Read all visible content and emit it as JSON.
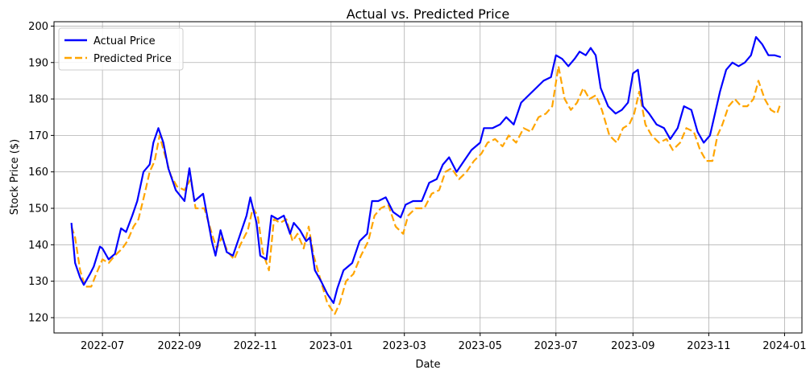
{
  "chart_data": {
    "type": "line",
    "title": "Actual vs. Predicted Price",
    "xlabel": "Date",
    "ylabel": "Stock Price ($)",
    "xlim": [
      "2022-05-23",
      "2024-01-15"
    ],
    "ylim": [
      115.8,
      201.2
    ],
    "grid": true,
    "legend_position": "top-left",
    "x_ticks": [
      "2022-07-01",
      "2022-09-01",
      "2022-11-01",
      "2023-01-01",
      "2023-03-01",
      "2023-05-01",
      "2023-07-01",
      "2023-09-01",
      "2023-11-01",
      "2024-01-01"
    ],
    "x_tick_labels": [
      "2022-07",
      "2022-09",
      "2022-11",
      "2023-01",
      "2023-03",
      "2023-05",
      "2023-07",
      "2023-09",
      "2023-11",
      "2024-01"
    ],
    "y_ticks": [
      120,
      130,
      140,
      150,
      160,
      170,
      180,
      190,
      200
    ],
    "series": [
      {
        "name": "Actual Price",
        "color": "#0000ff",
        "style": "solid",
        "points": [
          [
            "2022-06-06",
            146
          ],
          [
            "2022-06-09",
            135
          ],
          [
            "2022-06-13",
            131
          ],
          [
            "2022-06-16",
            129
          ],
          [
            "2022-06-21",
            132
          ],
          [
            "2022-06-24",
            134
          ],
          [
            "2022-06-29",
            139.5
          ],
          [
            "2022-07-01",
            139
          ],
          [
            "2022-07-06",
            136
          ],
          [
            "2022-07-11",
            137.5
          ],
          [
            "2022-07-16",
            144.5
          ],
          [
            "2022-07-20",
            143.5
          ],
          [
            "2022-07-25",
            148
          ],
          [
            "2022-07-29",
            152
          ],
          [
            "2022-08-03",
            160
          ],
          [
            "2022-08-08",
            162
          ],
          [
            "2022-08-11",
            168
          ],
          [
            "2022-08-15",
            172
          ],
          [
            "2022-08-19",
            168
          ],
          [
            "2022-08-23",
            161
          ],
          [
            "2022-08-29",
            155
          ],
          [
            "2022-09-05",
            152
          ],
          [
            "2022-09-09",
            161
          ],
          [
            "2022-09-13",
            152
          ],
          [
            "2022-09-20",
            154
          ],
          [
            "2022-09-27",
            141
          ],
          [
            "2022-09-30",
            137
          ],
          [
            "2022-10-04",
            144
          ],
          [
            "2022-10-09",
            138
          ],
          [
            "2022-10-14",
            137
          ],
          [
            "2022-10-19",
            142
          ],
          [
            "2022-10-25",
            148
          ],
          [
            "2022-10-28",
            153
          ],
          [
            "2022-11-02",
            146
          ],
          [
            "2022-11-05",
            137
          ],
          [
            "2022-11-10",
            136
          ],
          [
            "2022-11-14",
            148
          ],
          [
            "2022-11-19",
            147
          ],
          [
            "2022-11-24",
            148
          ],
          [
            "2022-11-29",
            143
          ],
          [
            "2022-12-02",
            146
          ],
          [
            "2022-12-07",
            144
          ],
          [
            "2022-12-12",
            141
          ],
          [
            "2022-12-15",
            142
          ],
          [
            "2022-12-19",
            133
          ],
          [
            "2022-12-24",
            130
          ],
          [
            "2022-12-29",
            126.5
          ],
          [
            "2023-01-03",
            124
          ],
          [
            "2023-01-06",
            128
          ],
          [
            "2023-01-11",
            133
          ],
          [
            "2023-01-18",
            135
          ],
          [
            "2023-01-24",
            141
          ],
          [
            "2023-01-30",
            143
          ],
          [
            "2023-02-03",
            152
          ],
          [
            "2023-02-08",
            152
          ],
          [
            "2023-02-14",
            153
          ],
          [
            "2023-02-20",
            149
          ],
          [
            "2023-02-26",
            147.5
          ],
          [
            "2023-03-02",
            151
          ],
          [
            "2023-03-08",
            152
          ],
          [
            "2023-03-15",
            152
          ],
          [
            "2023-03-21",
            157
          ],
          [
            "2023-03-27",
            158
          ],
          [
            "2023-04-01",
            162
          ],
          [
            "2023-04-06",
            164
          ],
          [
            "2023-04-12",
            160
          ],
          [
            "2023-04-18",
            163
          ],
          [
            "2023-04-24",
            166
          ],
          [
            "2023-05-01",
            168
          ],
          [
            "2023-05-04",
            172
          ],
          [
            "2023-05-11",
            172
          ],
          [
            "2023-05-17",
            173
          ],
          [
            "2023-05-22",
            175
          ],
          [
            "2023-05-28",
            173
          ],
          [
            "2023-06-03",
            179
          ],
          [
            "2023-06-09",
            181
          ],
          [
            "2023-06-15",
            183
          ],
          [
            "2023-06-21",
            185
          ],
          [
            "2023-06-27",
            186
          ],
          [
            "2023-07-01",
            192
          ],
          [
            "2023-07-06",
            191
          ],
          [
            "2023-07-11",
            189
          ],
          [
            "2023-07-16",
            191
          ],
          [
            "2023-07-20",
            193
          ],
          [
            "2023-07-25",
            192
          ],
          [
            "2023-07-29",
            194
          ],
          [
            "2023-08-02",
            192
          ],
          [
            "2023-08-06",
            183
          ],
          [
            "2023-08-12",
            178
          ],
          [
            "2023-08-18",
            176
          ],
          [
            "2023-08-23",
            177
          ],
          [
            "2023-08-28",
            179
          ],
          [
            "2023-09-01",
            187
          ],
          [
            "2023-09-05",
            188
          ],
          [
            "2023-09-09",
            178
          ],
          [
            "2023-09-14",
            176
          ],
          [
            "2023-09-20",
            173
          ],
          [
            "2023-09-26",
            172
          ],
          [
            "2023-10-01",
            169
          ],
          [
            "2023-10-07",
            172
          ],
          [
            "2023-10-12",
            178
          ],
          [
            "2023-10-18",
            177
          ],
          [
            "2023-10-23",
            171
          ],
          [
            "2023-10-28",
            168
          ],
          [
            "2023-11-02",
            170
          ],
          [
            "2023-11-06",
            176
          ],
          [
            "2023-11-10",
            182
          ],
          [
            "2023-11-15",
            188
          ],
          [
            "2023-11-20",
            190
          ],
          [
            "2023-11-25",
            189
          ],
          [
            "2023-11-30",
            190
          ],
          [
            "2023-12-05",
            192
          ],
          [
            "2023-12-09",
            197
          ],
          [
            "2023-12-14",
            195
          ],
          [
            "2023-12-19",
            192
          ],
          [
            "2023-12-24",
            192
          ],
          [
            "2023-12-29",
            191.5
          ]
        ]
      },
      {
        "name": "Predicted Price",
        "color": "#ffa500",
        "style": "dashed",
        "points": [
          [
            "2022-06-06",
            145
          ],
          [
            "2022-06-09",
            142
          ],
          [
            "2022-06-13",
            133
          ],
          [
            "2022-06-17",
            128.5
          ],
          [
            "2022-06-22",
            128.5
          ],
          [
            "2022-06-26",
            132
          ],
          [
            "2022-07-01",
            136
          ],
          [
            "2022-07-06",
            135
          ],
          [
            "2022-07-11",
            137
          ],
          [
            "2022-07-17",
            139
          ],
          [
            "2022-07-21",
            141
          ],
          [
            "2022-07-26",
            145
          ],
          [
            "2022-07-30",
            147
          ],
          [
            "2022-08-04",
            154
          ],
          [
            "2022-08-08",
            160
          ],
          [
            "2022-08-12",
            163
          ],
          [
            "2022-08-16",
            170
          ],
          [
            "2022-08-20",
            165
          ],
          [
            "2022-08-25",
            159
          ],
          [
            "2022-08-30",
            156
          ],
          [
            "2022-09-05",
            155
          ],
          [
            "2022-09-10",
            158
          ],
          [
            "2022-09-14",
            150
          ],
          [
            "2022-09-21",
            150
          ],
          [
            "2022-09-28",
            142
          ],
          [
            "2022-10-01",
            139
          ],
          [
            "2022-10-05",
            142
          ],
          [
            "2022-10-10",
            138
          ],
          [
            "2022-10-15",
            136
          ],
          [
            "2022-10-20",
            140
          ],
          [
            "2022-10-26",
            144
          ],
          [
            "2022-10-30",
            150
          ],
          [
            "2022-11-03",
            148
          ],
          [
            "2022-11-07",
            138
          ],
          [
            "2022-11-12",
            133
          ],
          [
            "2022-11-16",
            147
          ],
          [
            "2022-11-21",
            146
          ],
          [
            "2022-11-26",
            147
          ],
          [
            "2022-12-01",
            141
          ],
          [
            "2022-12-05",
            143
          ],
          [
            "2022-12-10",
            139
          ],
          [
            "2022-12-14",
            145
          ],
          [
            "2022-12-18",
            137
          ],
          [
            "2022-12-23",
            131
          ],
          [
            "2022-12-29",
            124
          ],
          [
            "2023-01-04",
            121
          ],
          [
            "2023-01-08",
            124
          ],
          [
            "2023-01-13",
            130
          ],
          [
            "2023-01-19",
            132
          ],
          [
            "2023-01-25",
            137
          ],
          [
            "2023-01-31",
            141
          ],
          [
            "2023-02-05",
            148
          ],
          [
            "2023-02-10",
            150
          ],
          [
            "2023-02-16",
            151
          ],
          [
            "2023-02-22",
            145
          ],
          [
            "2023-02-28",
            143
          ],
          [
            "2023-03-04",
            148
          ],
          [
            "2023-03-10",
            150
          ],
          [
            "2023-03-17",
            150
          ],
          [
            "2023-03-23",
            154
          ],
          [
            "2023-03-29",
            155
          ],
          [
            "2023-04-03",
            160
          ],
          [
            "2023-04-08",
            161
          ],
          [
            "2023-04-14",
            158
          ],
          [
            "2023-04-20",
            160
          ],
          [
            "2023-04-26",
            163
          ],
          [
            "2023-05-02",
            165
          ],
          [
            "2023-05-07",
            168
          ],
          [
            "2023-05-13",
            169
          ],
          [
            "2023-05-19",
            167
          ],
          [
            "2023-05-24",
            170
          ],
          [
            "2023-05-30",
            168
          ],
          [
            "2023-06-05",
            172
          ],
          [
            "2023-06-11",
            171
          ],
          [
            "2023-06-17",
            175
          ],
          [
            "2023-06-23",
            176
          ],
          [
            "2023-06-28",
            178
          ],
          [
            "2023-07-03",
            189
          ],
          [
            "2023-07-08",
            180
          ],
          [
            "2023-07-13",
            177
          ],
          [
            "2023-07-18",
            179
          ],
          [
            "2023-07-23",
            183
          ],
          [
            "2023-07-28",
            180
          ],
          [
            "2023-08-02",
            181
          ],
          [
            "2023-08-07",
            177
          ],
          [
            "2023-08-13",
            170
          ],
          [
            "2023-08-19",
            168
          ],
          [
            "2023-08-24",
            172
          ],
          [
            "2023-08-29",
            173
          ],
          [
            "2023-09-02",
            176
          ],
          [
            "2023-09-06",
            182
          ],
          [
            "2023-09-11",
            173
          ],
          [
            "2023-09-16",
            170
          ],
          [
            "2023-09-22",
            168
          ],
          [
            "2023-09-28",
            169
          ],
          [
            "2023-10-03",
            166
          ],
          [
            "2023-10-09",
            168
          ],
          [
            "2023-10-14",
            172
          ],
          [
            "2023-10-20",
            171
          ],
          [
            "2023-10-25",
            166
          ],
          [
            "2023-10-30",
            163
          ],
          [
            "2023-11-04",
            163
          ],
          [
            "2023-11-08",
            170
          ],
          [
            "2023-11-12",
            173
          ],
          [
            "2023-11-17",
            178
          ],
          [
            "2023-11-22",
            180
          ],
          [
            "2023-11-27",
            178
          ],
          [
            "2023-12-02",
            178
          ],
          [
            "2023-12-07",
            180
          ],
          [
            "2023-12-11",
            185
          ],
          [
            "2023-12-16",
            180
          ],
          [
            "2023-12-21",
            177
          ],
          [
            "2023-12-26",
            176
          ],
          [
            "2023-12-29",
            179
          ]
        ]
      }
    ]
  }
}
